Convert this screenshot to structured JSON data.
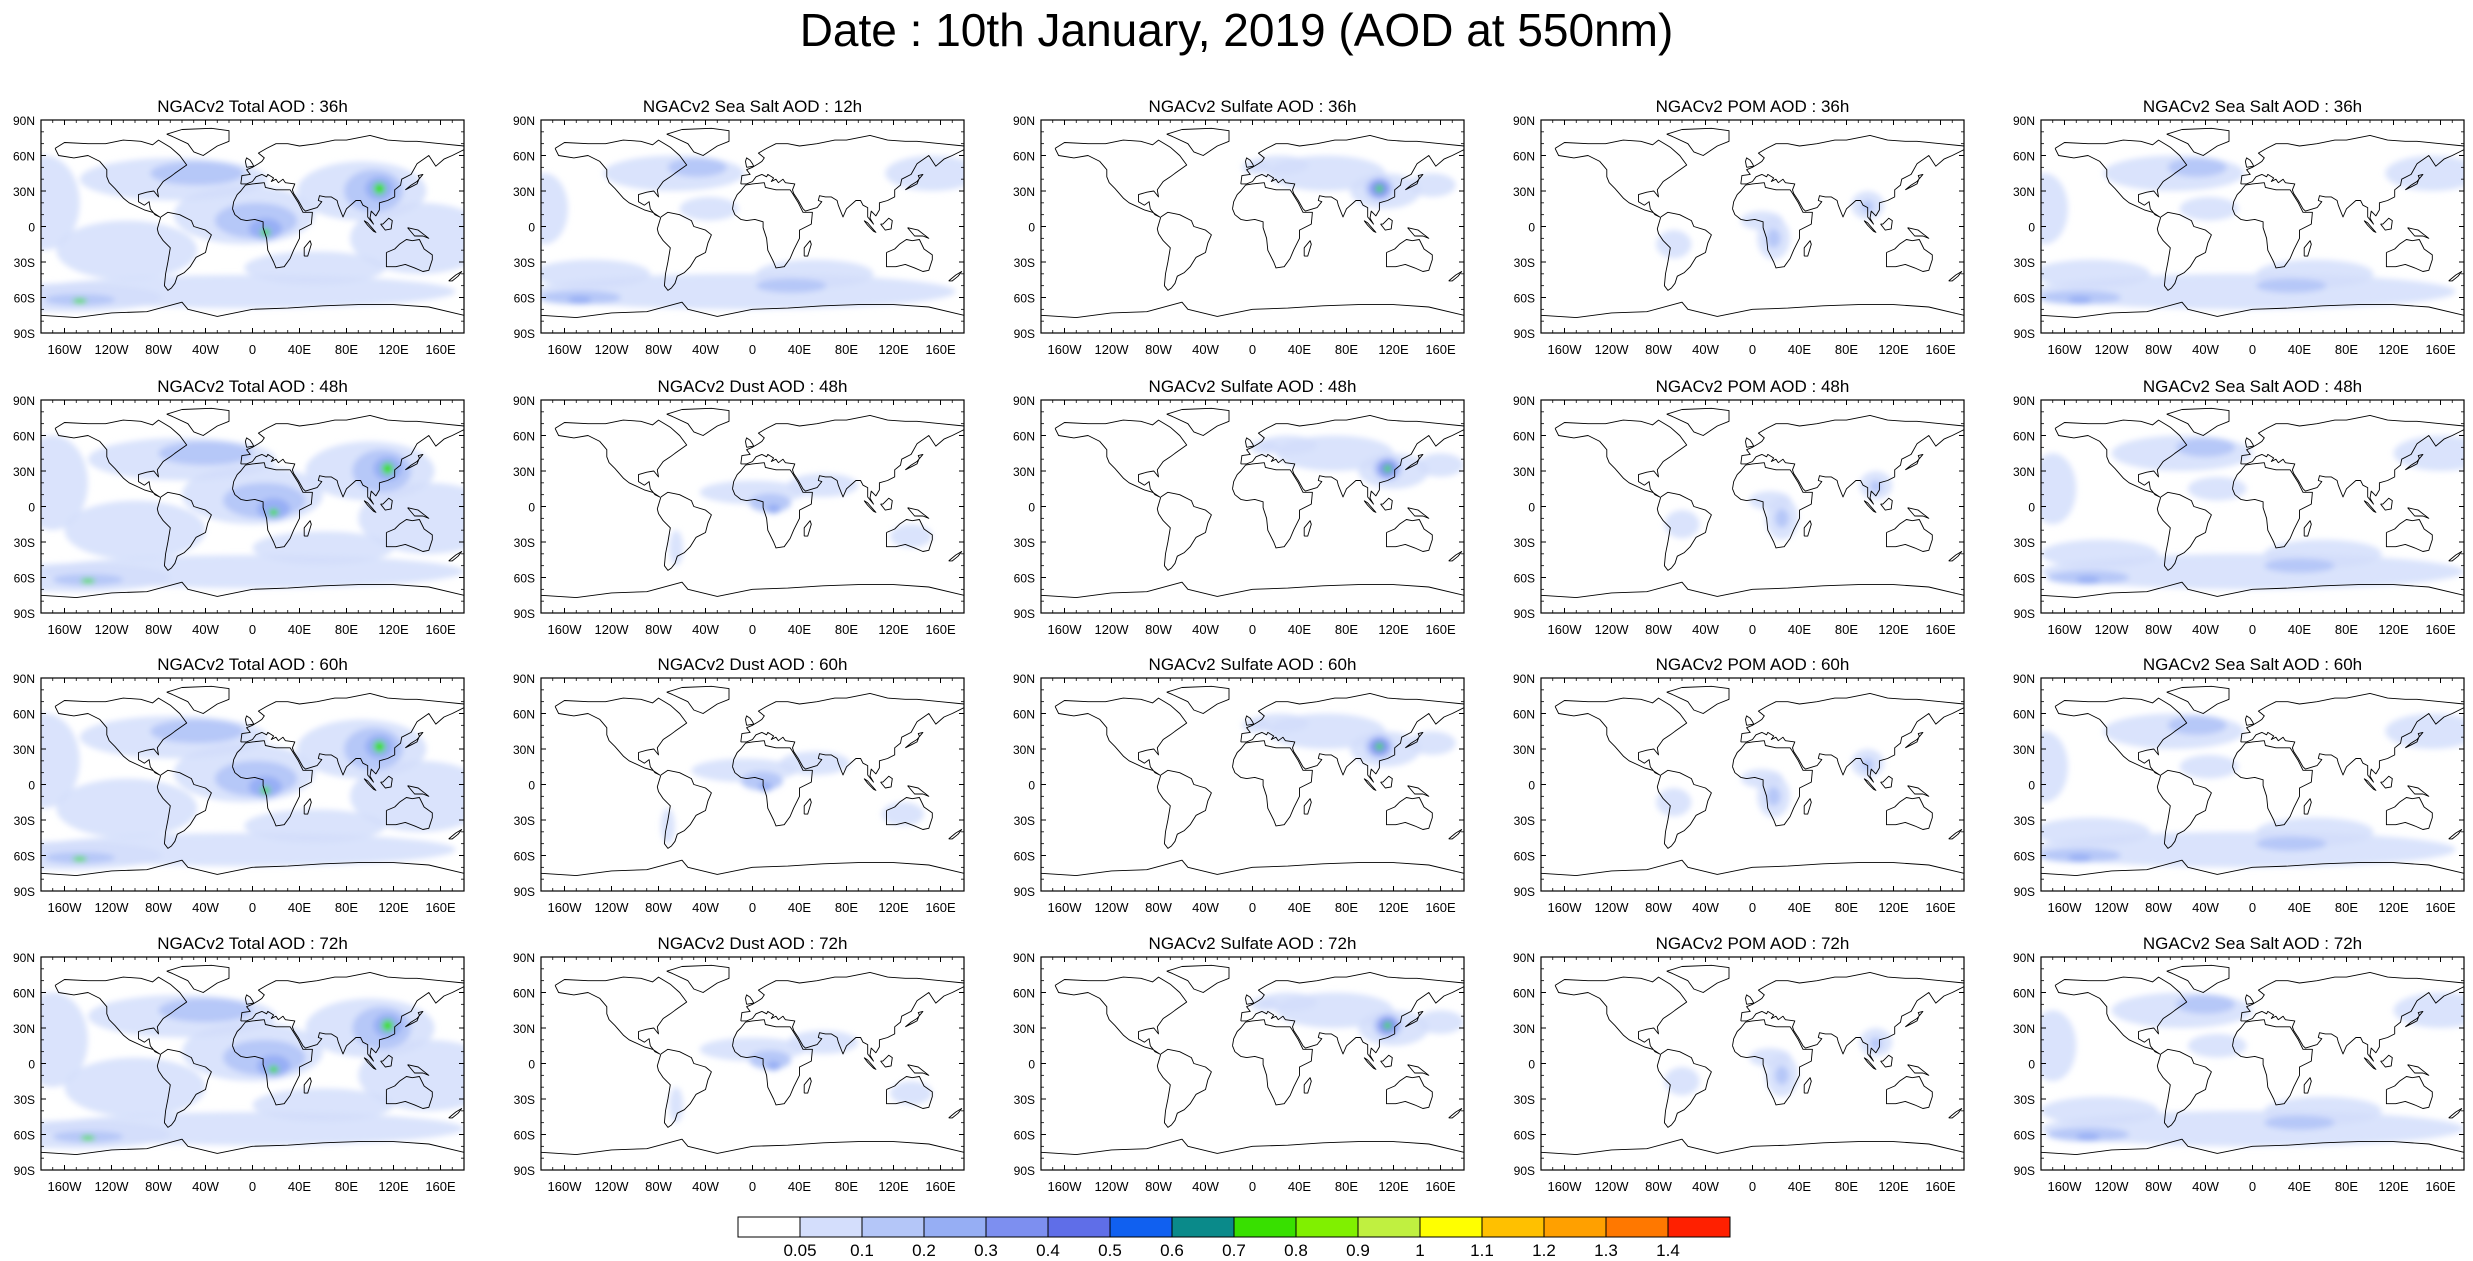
{
  "title": "Date : 10th January, 2019 (AOD at 550nm)",
  "lat_labels": [
    "90N",
    "60N",
    "30N",
    "0",
    "30S",
    "60S",
    "90S"
  ],
  "lon_labels": [
    "160W",
    "120W",
    "80W",
    "40W",
    "0",
    "40E",
    "80E",
    "120E",
    "160E"
  ],
  "panels": [
    [
      "NGACv2 Total AOD : 36h",
      "NGACv2 Sea Salt  AOD : 12h",
      "NGACv2 Sulfate AOD : 36h",
      "NGACv2 POM AOD : 36h",
      "NGACv2 Sea Salt  AOD : 36h"
    ],
    [
      "NGACv2 Total AOD : 48h",
      "NGACv2 Dust AOD : 48h",
      "NGACv2 Sulfate AOD : 48h",
      "NGACv2 POM AOD : 48h",
      "NGACv2 Sea Salt  AOD : 48h"
    ],
    [
      "NGACv2 Total AOD : 60h",
      "NGACv2 Dust AOD : 60h",
      "NGACv2 Sulfate AOD : 60h",
      "NGACv2 POM AOD : 60h",
      "NGACv2 Sea Salt  AOD : 60h"
    ],
    [
      "NGACv2 Total AOD : 72h",
      "NGACv2 Dust AOD : 72h",
      "NGACv2 Sulfate AOD : 72h",
      "NGACv2 POM AOD : 72h",
      "NGACv2 Sea Salt  AOD : 72h"
    ]
  ],
  "colorbar": {
    "labels": [
      "0.05",
      "0.1",
      "0.2",
      "0.3",
      "0.4",
      "0.5",
      "0.6",
      "0.7",
      "0.8",
      "0.9",
      "1",
      "1.1",
      "1.2",
      "1.3",
      "1.4"
    ],
    "colors": [
      "#ffffff",
      "#d4defc",
      "#b4c6f8",
      "#96aef4",
      "#7d8ff0",
      "#5f6ee8",
      "#1060f0",
      "#0a8a8a",
      "#38e000",
      "#80f000",
      "#c0f040",
      "#ffff00",
      "#ffc000",
      "#ffa000",
      "#ff7800",
      "#ff2000"
    ]
  },
  "variable_colors": {
    "total": [
      "#d4defc",
      "#b4c6f8",
      "#96aef4",
      "#7d8ff0",
      "#38e000"
    ],
    "seasalt": [
      "#d4defc",
      "#b4c6f8",
      "#96aef4"
    ],
    "dust": [
      "#d4defc",
      "#b4c6f8",
      "#96aef4"
    ],
    "sulfate": [
      "#d4defc",
      "#b4c6f8",
      "#7d8ff0",
      "#38e000"
    ],
    "pom": [
      "#d4defc",
      "#b4c6f8"
    ]
  }
}
